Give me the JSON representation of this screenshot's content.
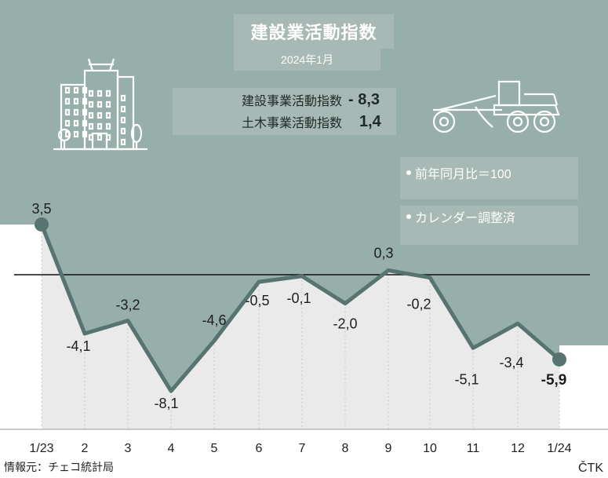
{
  "header": {
    "title": "建設業活動指数",
    "date": "2024年1月"
  },
  "metrics": [
    {
      "label": "建設事業活動指数",
      "value": "- 8,3"
    },
    {
      "label": "土木事業活動指数",
      "value": "1,4"
    }
  ],
  "notes": [
    "前年同月比＝100",
    "カレンダー調整済"
  ],
  "source": "情報元：チェコ統計局",
  "logo": "ČTK",
  "icons": [
    "building-icon",
    "road-grader-icon"
  ],
  "colors": {
    "band": "#97afaa",
    "line": "#587470",
    "fill": "#eaeaea",
    "box": "#a7b9b4"
  },
  "chart_data": {
    "type": "line",
    "categories": [
      "1/23",
      "2",
      "3",
      "4",
      "5",
      "6",
      "7",
      "8",
      "9",
      "10",
      "11",
      "12",
      "1/24"
    ],
    "values": [
      3.5,
      -4.1,
      -3.2,
      -8.1,
      -4.6,
      -0.5,
      -0.1,
      -2.0,
      0.3,
      -0.2,
      -5.1,
      -3.4,
      -5.9
    ],
    "labels": [
      "3,5",
      "-4,1",
      "-3,2",
      "-8,1",
      "-4,6",
      "-0,5",
      "-0,1",
      "-2,0",
      "0,3",
      "-0,2",
      "-5,1",
      "-3,4",
      "-5,9"
    ],
    "baseline": 0,
    "ylim": [
      -11,
      9
    ],
    "grid": false
  }
}
